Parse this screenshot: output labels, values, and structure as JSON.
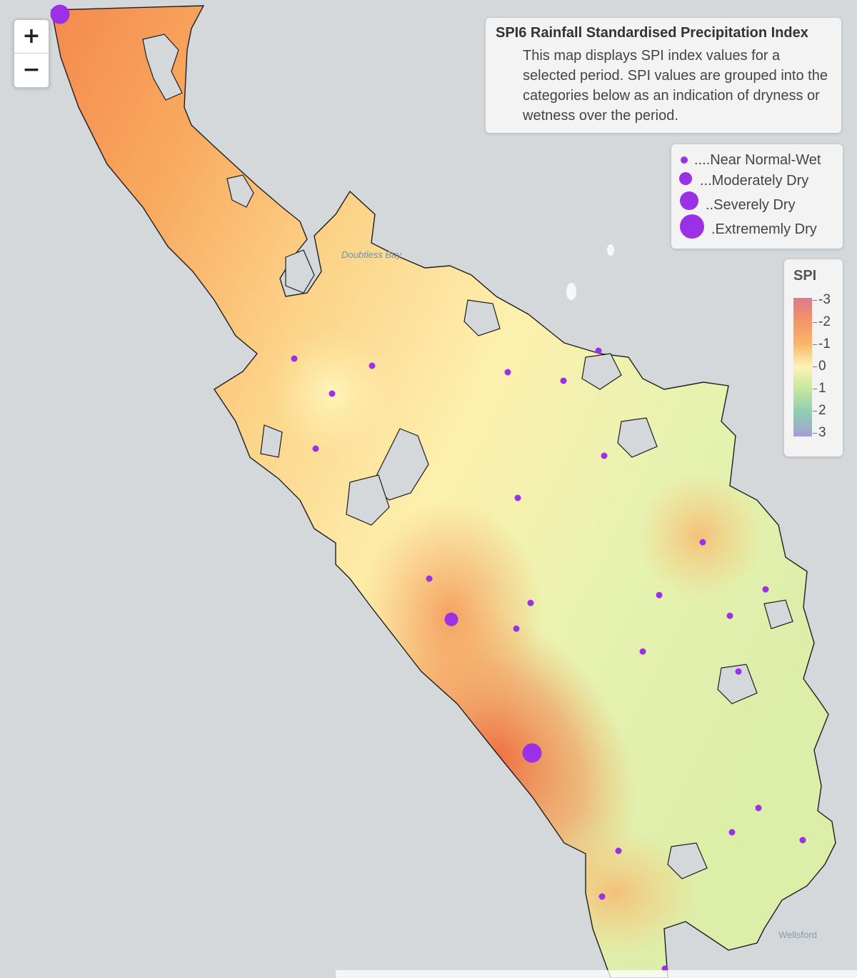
{
  "map": {
    "base_color": "#d4d8da",
    "land_colors": {
      "dry_extreme": "#f07244",
      "dry": "#f8a55e",
      "near_normal": "#fdeaa6",
      "wet": "#e0efb0"
    },
    "station_color": "#9b30e6",
    "places": [
      "Doubtless Bay",
      "Wellsford"
    ]
  },
  "zoom": {
    "in_label": "+",
    "out_label": "−"
  },
  "info": {
    "title": "SPI6 Rainfall Standardised Precipitation Index",
    "body": "This map displays SPI index values for a selected period. SPI values are grouped into the categories below as an indication of dryness or wetness over the period."
  },
  "legend": {
    "items": [
      {
        "label": "....Near Normal-Wet",
        "category": "near-normal-wet"
      },
      {
        "label": "...Moderately Dry",
        "category": "moderately-dry"
      },
      {
        "label": "..Severely Dry",
        "category": "severely-dry"
      },
      {
        "label": ".Extrememly Dry",
        "category": "extremely-dry"
      }
    ]
  },
  "spi_scale": {
    "title": "SPI",
    "ticks": [
      "-3",
      "-2",
      "-1",
      "0",
      "1",
      "2",
      "3"
    ],
    "range": [
      -3,
      3
    ]
  },
  "stations": [
    {
      "category": "extremely-dry"
    },
    {
      "category": "extremely-dry"
    },
    {
      "category": "severely-dry"
    },
    {
      "category": "near-normal-wet"
    },
    {
      "category": "near-normal-wet"
    },
    {
      "category": "near-normal-wet"
    },
    {
      "category": "near-normal-wet"
    },
    {
      "category": "near-normal-wet"
    },
    {
      "category": "near-normal-wet"
    },
    {
      "category": "near-normal-wet"
    },
    {
      "category": "near-normal-wet"
    },
    {
      "category": "near-normal-wet"
    },
    {
      "category": "near-normal-wet"
    },
    {
      "category": "near-normal-wet"
    },
    {
      "category": "near-normal-wet"
    },
    {
      "category": "near-normal-wet"
    },
    {
      "category": "near-normal-wet"
    },
    {
      "category": "near-normal-wet"
    },
    {
      "category": "near-normal-wet"
    },
    {
      "category": "near-normal-wet"
    },
    {
      "category": "near-normal-wet"
    },
    {
      "category": "near-normal-wet"
    },
    {
      "category": "near-normal-wet"
    },
    {
      "category": "near-normal-wet"
    },
    {
      "category": "near-normal-wet"
    },
    {
      "category": "near-normal-wet"
    }
  ]
}
